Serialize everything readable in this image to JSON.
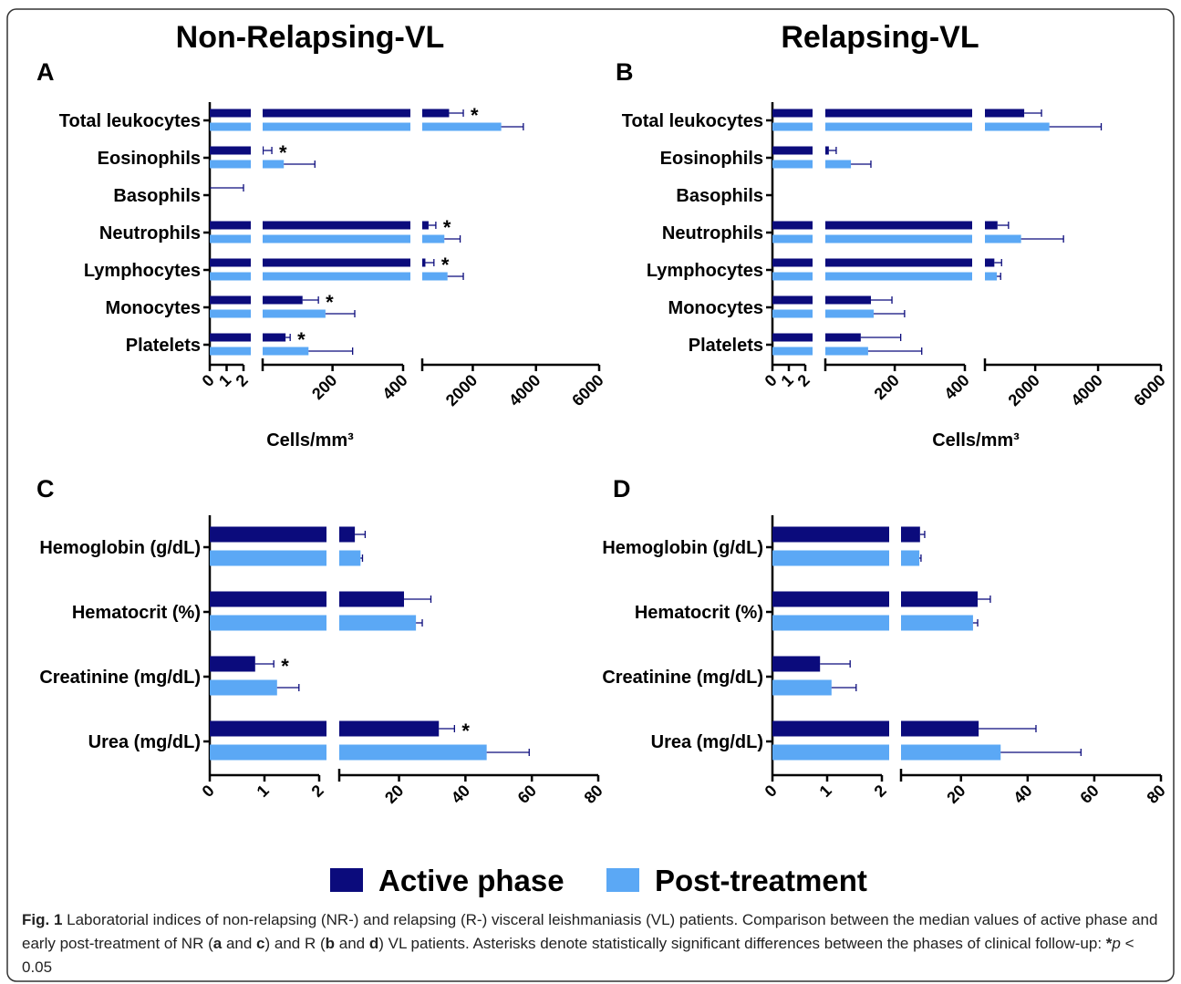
{
  "headings": [
    "Non-Relapsing-VL",
    "Relapsing-VL"
  ],
  "chart_data": [
    {
      "type": "bar",
      "panel": "A",
      "orientation": "horizontal",
      "xlabel": "Cells/mm³",
      "categories": [
        "Total leukocytes",
        "Eosinophils",
        "Basophils",
        "Neutrophils",
        "Lymphocytes",
        "Monocytes",
        "Platelets"
      ],
      "x_segments": [
        {
          "xlim": [
            0,
            2
          ],
          "xticks": [
            0,
            1,
            2
          ]
        },
        {
          "xlim": [
            2,
            400
          ],
          "xticks": [
            200,
            400
          ]
        },
        {
          "xlim": [
            400,
            6000
          ],
          "xticks": [
            2000,
            4000,
            6000
          ]
        }
      ],
      "series": [
        {
          "name": "Active phase",
          "color": "#0b0b7c",
          "values": [
            1250,
            5,
            0,
            600,
            500,
            115,
            67
          ],
          "errors": [
            450,
            23,
            2,
            230,
            270,
            45,
            13
          ]
        },
        {
          "name": "Post-treatment",
          "color": "#5ba8f5",
          "values": [
            2900,
            62,
            0,
            1100,
            1200,
            180,
            132
          ],
          "errors": [
            700,
            88,
            0,
            500,
            500,
            83,
            125
          ]
        }
      ],
      "significance": [
        "*",
        "*",
        null,
        "*",
        "*",
        "*",
        "*"
      ]
    },
    {
      "type": "bar",
      "panel": "B",
      "orientation": "horizontal",
      "xlabel": "Cells/mm³",
      "categories": [
        "Total leukocytes",
        "Eosinophils",
        "Basophils",
        "Neutrophils",
        "Lymphocytes",
        "Monocytes",
        "Platelets"
      ],
      "x_segments": [
        {
          "xlim": [
            0,
            2
          ],
          "xticks": [
            0,
            1,
            2
          ]
        },
        {
          "xlim": [
            2,
            400
          ],
          "xticks": [
            200,
            400
          ]
        },
        {
          "xlim": [
            400,
            6000
          ],
          "xticks": [
            2000,
            4000,
            6000
          ]
        }
      ],
      "series": [
        {
          "name": "Active phase",
          "color": "#0b0b7c",
          "values": [
            1650,
            12,
            0,
            800,
            700,
            132,
            103
          ],
          "errors": [
            550,
            21,
            0,
            350,
            230,
            60,
            114
          ]
        },
        {
          "name": "Post-treatment",
          "color": "#5ba8f5",
          "values": [
            2450,
            75,
            0,
            1550,
            780,
            140,
            124
          ],
          "errors": [
            1650,
            57,
            0,
            1350,
            120,
            88,
            153
          ]
        }
      ],
      "significance": [
        null,
        null,
        null,
        null,
        null,
        null,
        null
      ]
    },
    {
      "type": "bar",
      "panel": "C",
      "orientation": "horizontal",
      "categories": [
        "Hemoglobin (g/dL)",
        "Hematocrit (%)",
        "Creatinine (mg/dL)",
        "Urea  (mg/dL)"
      ],
      "x_segments": [
        {
          "xlim": [
            0,
            2
          ],
          "xticks": [
            0,
            1,
            2
          ]
        },
        {
          "xlim": [
            2,
            80
          ],
          "xticks": [
            20,
            40,
            60,
            80
          ]
        }
      ],
      "series": [
        {
          "name": "Active phase",
          "color": "#0b0b7c",
          "values": [
            6.7,
            21.5,
            0.83,
            32
          ],
          "errors": [
            3.1,
            8.1,
            0.34,
            4.7
          ]
        },
        {
          "name": "Post-treatment",
          "color": "#5ba8f5",
          "values": [
            8.4,
            25.1,
            1.23,
            46.4
          ],
          "errors": [
            0.6,
            1.9,
            0.4,
            12.8
          ]
        }
      ],
      "significance": [
        null,
        null,
        "*",
        "*"
      ]
    },
    {
      "type": "bar",
      "panel": "D",
      "orientation": "horizontal",
      "categories": [
        "Hemoglobin (g/dL)",
        "Hematocrit (%)",
        "Creatinine (mg/dL)",
        "Urea (mg/dL)"
      ],
      "x_segments": [
        {
          "xlim": [
            0,
            2
          ],
          "xticks": [
            0,
            1,
            2
          ]
        },
        {
          "xlim": [
            2,
            80
          ],
          "xticks": [
            20,
            40,
            60,
            80
          ]
        }
      ],
      "series": [
        {
          "name": "Active phase",
          "color": "#0b0b7c",
          "values": [
            7.7,
            25,
            0.87,
            25.3
          ],
          "errors": [
            1.4,
            3.8,
            0.55,
            17.2
          ]
        },
        {
          "name": "Post-treatment",
          "color": "#5ba8f5",
          "values": [
            7.5,
            23.6,
            1.08,
            31.9
          ],
          "errors": [
            0.5,
            1.4,
            0.45,
            24.1
          ]
        }
      ],
      "significance": [
        null,
        null,
        null,
        null
      ]
    }
  ],
  "caption": [
    "Fig. 1",
    " Laboratorial indices of non-relapsing (NR-) and relapsing (R-) visceral leishmaniasis (VL) patients. Comparison between the median values of active phase and early post-treatment of NR (",
    "a",
    " and ",
    "c",
    ") and R (",
    "b",
    " and ",
    "d",
    ") VL patients. Asterisks denote statistically significant differences between the phases of clinical follow-up: ",
    "*",
    "p",
    " < 0.05"
  ]
}
